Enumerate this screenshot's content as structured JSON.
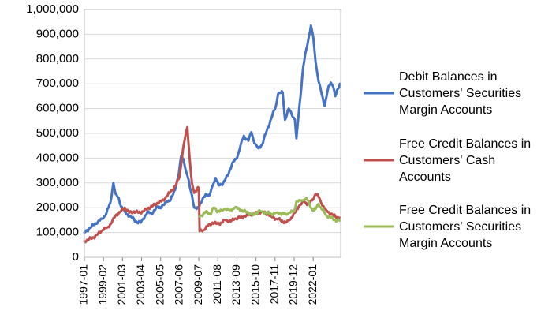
{
  "chart_data": {
    "type": "line",
    "title": "",
    "xlabel": "",
    "ylabel": "",
    "ylim": [
      0,
      1000000
    ],
    "y_ticks": [
      "0",
      "100,000",
      "200,000",
      "300,000",
      "400,000",
      "500,000",
      "600,000",
      "700,000",
      "800,000",
      "900,000",
      "1,000,000"
    ],
    "x_ticks": [
      "1997-01",
      "1999-02",
      "2001-03",
      "2003-04",
      "2005-05",
      "2007-06",
      "2009-07",
      "2011-08",
      "2013-09",
      "2015-10",
      "2017-11",
      "2019-12",
      "2022-01"
    ],
    "x_range": [
      "1997-01",
      "2024-12"
    ],
    "grid": "horizontal",
    "legend_position": "right",
    "series": [
      {
        "name": "Debit Balances in Customers' Securities Margin Accounts",
        "legend_lines": [
          "Debit Balances in",
          "Customers' Securities",
          "Margin Accounts"
        ],
        "color": "#4472C4",
        "points": [
          [
            "1997-01",
            100000
          ],
          [
            "1997-07",
            115000
          ],
          [
            "1998-01",
            130000
          ],
          [
            "1998-07",
            145000
          ],
          [
            "1999-01",
            155000
          ],
          [
            "1999-06",
            180000
          ],
          [
            "1999-11",
            220000
          ],
          [
            "2000-03",
            300000
          ],
          [
            "2000-06",
            255000
          ],
          [
            "2000-10",
            240000
          ],
          [
            "2001-01",
            205000
          ],
          [
            "2001-06",
            185000
          ],
          [
            "2001-12",
            165000
          ],
          [
            "2002-06",
            155000
          ],
          [
            "2002-10",
            140000
          ],
          [
            "2003-03",
            140000
          ],
          [
            "2003-06",
            155000
          ],
          [
            "2004-01",
            185000
          ],
          [
            "2004-06",
            175000
          ],
          [
            "2005-01",
            205000
          ],
          [
            "2005-06",
            200000
          ],
          [
            "2006-01",
            225000
          ],
          [
            "2006-06",
            230000
          ],
          [
            "2007-01",
            285000
          ],
          [
            "2007-05",
            340000
          ],
          [
            "2007-08",
            410000
          ],
          [
            "2007-11",
            395000
          ],
          [
            "2008-02",
            350000
          ],
          [
            "2008-05",
            320000
          ],
          [
            "2008-10",
            250000
          ],
          [
            "2009-01",
            200000
          ],
          [
            "2009-04",
            195000
          ],
          [
            "2009-10",
            220000
          ],
          [
            "2010-04",
            255000
          ],
          [
            "2010-09",
            250000
          ],
          [
            "2011-02",
            295000
          ],
          [
            "2011-05",
            320000
          ],
          [
            "2011-09",
            290000
          ],
          [
            "2012-03",
            300000
          ],
          [
            "2012-09",
            330000
          ],
          [
            "2013-03",
            380000
          ],
          [
            "2013-09",
            400000
          ],
          [
            "2014-02",
            455000
          ],
          [
            "2014-06",
            490000
          ],
          [
            "2014-12",
            470000
          ],
          [
            "2015-04",
            505000
          ],
          [
            "2015-08",
            460000
          ],
          [
            "2016-01",
            440000
          ],
          [
            "2016-06",
            455000
          ],
          [
            "2016-12",
            510000
          ],
          [
            "2017-06",
            560000
          ],
          [
            "2017-12",
            610000
          ],
          [
            "2018-03",
            660000
          ],
          [
            "2018-09",
            665000
          ],
          [
            "2018-12",
            555000
          ],
          [
            "2019-05",
            600000
          ],
          [
            "2019-09",
            575000
          ],
          [
            "2020-01",
            555000
          ],
          [
            "2020-03",
            480000
          ],
          [
            "2020-06",
            580000
          ],
          [
            "2020-12",
            770000
          ],
          [
            "2021-04",
            840000
          ],
          [
            "2021-08",
            900000
          ],
          [
            "2021-10",
            935000
          ],
          [
            "2022-01",
            890000
          ],
          [
            "2022-04",
            790000
          ],
          [
            "2022-08",
            710000
          ],
          [
            "2022-12",
            660000
          ],
          [
            "2023-04",
            610000
          ],
          [
            "2023-08",
            675000
          ],
          [
            "2023-12",
            705000
          ],
          [
            "2024-03",
            690000
          ],
          [
            "2024-06",
            650000
          ],
          [
            "2024-12",
            700000
          ]
        ]
      },
      {
        "name": "Free Credit Balances in Customers' Cash Accounts",
        "legend_lines": [
          "Free Credit Balances in",
          "Customers' Cash",
          "Accounts"
        ],
        "color": "#C0504D",
        "points": [
          [
            "1997-01",
            65000
          ],
          [
            "1997-07",
            72000
          ],
          [
            "1998-01",
            80000
          ],
          [
            "1998-07",
            95000
          ],
          [
            "1999-01",
            110000
          ],
          [
            "1999-07",
            120000
          ],
          [
            "2000-01",
            140000
          ],
          [
            "2000-06",
            170000
          ],
          [
            "2001-01",
            185000
          ],
          [
            "2001-06",
            200000
          ],
          [
            "2001-12",
            180000
          ],
          [
            "2002-06",
            185000
          ],
          [
            "2002-12",
            180000
          ],
          [
            "2003-06",
            185000
          ],
          [
            "2004-01",
            200000
          ],
          [
            "2004-06",
            205000
          ],
          [
            "2005-01",
            220000
          ],
          [
            "2005-06",
            225000
          ],
          [
            "2006-01",
            245000
          ],
          [
            "2006-06",
            265000
          ],
          [
            "2007-01",
            290000
          ],
          [
            "2007-06",
            330000
          ],
          [
            "2007-10",
            430000
          ],
          [
            "2008-02",
            500000
          ],
          [
            "2008-04",
            525000
          ],
          [
            "2008-07",
            400000
          ],
          [
            "2008-10",
            300000
          ],
          [
            "2009-01",
            260000
          ],
          [
            "2009-05",
            280000
          ],
          [
            "2009-07",
            280000
          ],
          [
            "2009-08",
            105000
          ],
          [
            "2010-01",
            110000
          ],
          [
            "2010-06",
            125000
          ],
          [
            "2011-01",
            140000
          ],
          [
            "2011-06",
            135000
          ],
          [
            "2012-01",
            140000
          ],
          [
            "2012-06",
            150000
          ],
          [
            "2013-01",
            145000
          ],
          [
            "2013-06",
            155000
          ],
          [
            "2014-01",
            160000
          ],
          [
            "2014-06",
            165000
          ],
          [
            "2015-01",
            170000
          ],
          [
            "2015-06",
            175000
          ],
          [
            "2016-01",
            180000
          ],
          [
            "2016-06",
            185000
          ],
          [
            "2017-01",
            175000
          ],
          [
            "2017-06",
            165000
          ],
          [
            "2018-01",
            155000
          ],
          [
            "2018-06",
            150000
          ],
          [
            "2019-01",
            140000
          ],
          [
            "2019-06",
            150000
          ],
          [
            "2020-01",
            180000
          ],
          [
            "2020-06",
            205000
          ],
          [
            "2021-01",
            225000
          ],
          [
            "2021-06",
            215000
          ],
          [
            "2021-12",
            230000
          ],
          [
            "2022-04",
            255000
          ],
          [
            "2022-08",
            245000
          ],
          [
            "2022-12",
            215000
          ],
          [
            "2023-06",
            190000
          ],
          [
            "2023-12",
            175000
          ],
          [
            "2024-06",
            165000
          ],
          [
            "2024-12",
            160000
          ]
        ]
      },
      {
        "name": "Free Credit Balances in Customers' Securities Margin Accounts",
        "legend_lines": [
          "Free Credit Balances in",
          "Customers' Securities",
          "Margin Accounts"
        ],
        "color": "#9BBB59",
        "points": [
          [
            "2009-08",
            165000
          ],
          [
            "2010-01",
            175000
          ],
          [
            "2010-06",
            185000
          ],
          [
            "2010-10",
            175000
          ],
          [
            "2011-03",
            200000
          ],
          [
            "2011-08",
            185000
          ],
          [
            "2012-01",
            190000
          ],
          [
            "2012-06",
            195000
          ],
          [
            "2012-12",
            190000
          ],
          [
            "2013-06",
            200000
          ],
          [
            "2013-12",
            195000
          ],
          [
            "2014-06",
            185000
          ],
          [
            "2014-12",
            180000
          ],
          [
            "2015-06",
            170000
          ],
          [
            "2016-01",
            185000
          ],
          [
            "2016-06",
            185000
          ],
          [
            "2017-01",
            180000
          ],
          [
            "2017-06",
            175000
          ],
          [
            "2018-01",
            180000
          ],
          [
            "2018-06",
            178000
          ],
          [
            "2019-01",
            175000
          ],
          [
            "2019-06",
            180000
          ],
          [
            "2019-12",
            185000
          ],
          [
            "2020-03",
            225000
          ],
          [
            "2020-08",
            230000
          ],
          [
            "2021-01",
            230000
          ],
          [
            "2021-04",
            240000
          ],
          [
            "2021-08",
            215000
          ],
          [
            "2021-12",
            190000
          ],
          [
            "2022-04",
            195000
          ],
          [
            "2022-08",
            215000
          ],
          [
            "2022-12",
            195000
          ],
          [
            "2023-06",
            170000
          ],
          [
            "2023-12",
            160000
          ],
          [
            "2024-06",
            150000
          ],
          [
            "2024-12",
            148000
          ]
        ]
      }
    ]
  }
}
